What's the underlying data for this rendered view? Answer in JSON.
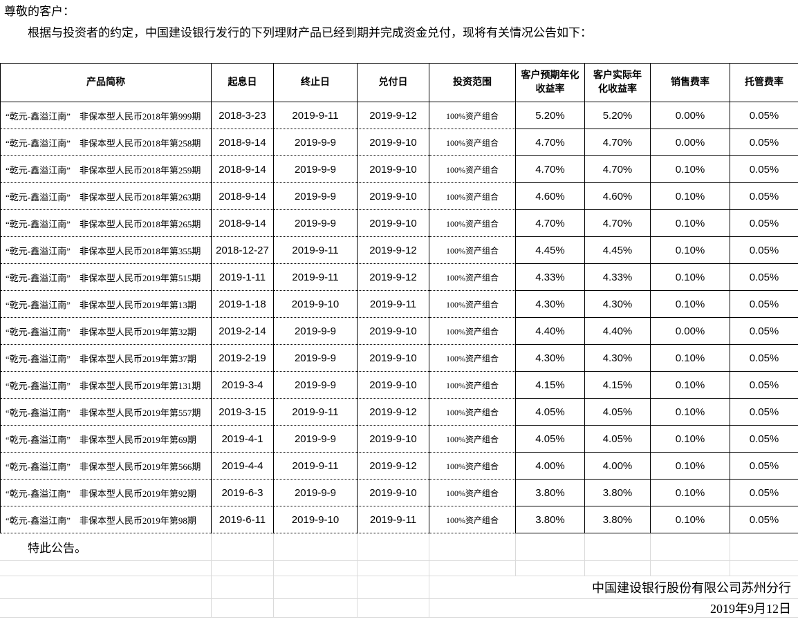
{
  "page": {
    "greeting": "尊敬的客户：",
    "intro": "根据与投资者的约定，中国建设银行发行的下列理财产品已经到期并完成资金兑付，现将有关情况公告如下：",
    "closing": "特此公告。",
    "signature": "中国建设银行股份有限公司苏州分行",
    "announce_date": "2019年9月12日"
  },
  "table": {
    "headers": [
      "产品简称",
      "起息日",
      "终止日",
      "兑付日",
      "投资范围",
      "客户预期年化收益率",
      "客户实际年化收益率",
      "销售费率",
      "托管费率"
    ],
    "rows": [
      {
        "name": "“乾元-鑫溢江南”　非保本型人民币2018年第999期",
        "start_date": "2018-3-23",
        "end_date": "2019-9-11",
        "payment_date": "2019-9-12",
        "scope": "100%资产组合",
        "expected_yield": "5.20%",
        "actual_yield": "5.20%",
        "sales_fee": "0.00%",
        "custody_fee": "0.05%"
      },
      {
        "name": "“乾元-鑫溢江南”　非保本型人民币2018年第258期",
        "start_date": "2018-9-14",
        "end_date": "2019-9-9",
        "payment_date": "2019-9-10",
        "scope": "100%资产组合",
        "expected_yield": "4.70%",
        "actual_yield": "4.70%",
        "sales_fee": "0.00%",
        "custody_fee": "0.05%"
      },
      {
        "name": "“乾元-鑫溢江南”　非保本型人民币2018年第259期",
        "start_date": "2018-9-14",
        "end_date": "2019-9-9",
        "payment_date": "2019-9-10",
        "scope": "100%资产组合",
        "expected_yield": "4.70%",
        "actual_yield": "4.70%",
        "sales_fee": "0.10%",
        "custody_fee": "0.05%"
      },
      {
        "name": "“乾元-鑫溢江南”　非保本型人民币2018年第263期",
        "start_date": "2018-9-14",
        "end_date": "2019-9-9",
        "payment_date": "2019-9-10",
        "scope": "100%资产组合",
        "expected_yield": "4.60%",
        "actual_yield": "4.60%",
        "sales_fee": "0.10%",
        "custody_fee": "0.05%"
      },
      {
        "name": "“乾元-鑫溢江南”　非保本型人民币2018年第265期",
        "start_date": "2018-9-14",
        "end_date": "2019-9-9",
        "payment_date": "2019-9-10",
        "scope": "100%资产组合",
        "expected_yield": "4.70%",
        "actual_yield": "4.70%",
        "sales_fee": "0.10%",
        "custody_fee": "0.05%"
      },
      {
        "name": "“乾元-鑫溢江南”　非保本型人民币2018年第355期",
        "start_date": "2018-12-27",
        "end_date": "2019-9-11",
        "payment_date": "2019-9-12",
        "scope": "100%资产组合",
        "expected_yield": "4.45%",
        "actual_yield": "4.45%",
        "sales_fee": "0.10%",
        "custody_fee": "0.05%"
      },
      {
        "name": "“乾元-鑫溢江南”　非保本型人民币2019年第515期",
        "start_date": "2019-1-11",
        "end_date": "2019-9-11",
        "payment_date": "2019-9-12",
        "scope": "100%资产组合",
        "expected_yield": "4.33%",
        "actual_yield": "4.33%",
        "sales_fee": "0.10%",
        "custody_fee": "0.05%"
      },
      {
        "name": "“乾元-鑫溢江南”　非保本型人民币2019年第13期",
        "start_date": "2019-1-18",
        "end_date": "2019-9-10",
        "payment_date": "2019-9-11",
        "scope": "100%资产组合",
        "expected_yield": "4.30%",
        "actual_yield": "4.30%",
        "sales_fee": "0.10%",
        "custody_fee": "0.05%"
      },
      {
        "name": "“乾元-鑫溢江南”　非保本型人民币2019年第32期",
        "start_date": "2019-2-14",
        "end_date": "2019-9-9",
        "payment_date": "2019-9-10",
        "scope": "100%资产组合",
        "expected_yield": "4.40%",
        "actual_yield": "4.40%",
        "sales_fee": "0.00%",
        "custody_fee": "0.05%"
      },
      {
        "name": "“乾元-鑫溢江南”　非保本型人民币2019年第37期",
        "start_date": "2019-2-19",
        "end_date": "2019-9-9",
        "payment_date": "2019-9-10",
        "scope": "100%资产组合",
        "expected_yield": "4.30%",
        "actual_yield": "4.30%",
        "sales_fee": "0.10%",
        "custody_fee": "0.05%"
      },
      {
        "name": "“乾元-鑫溢江南”　非保本型人民币2019年第131期",
        "start_date": "2019-3-4",
        "end_date": "2019-9-9",
        "payment_date": "2019-9-10",
        "scope": "100%资产组合",
        "expected_yield": "4.15%",
        "actual_yield": "4.15%",
        "sales_fee": "0.10%",
        "custody_fee": "0.05%"
      },
      {
        "name": "“乾元-鑫溢江南”　非保本型人民币2019年第557期",
        "start_date": "2019-3-15",
        "end_date": "2019-9-11",
        "payment_date": "2019-9-12",
        "scope": "100%资产组合",
        "expected_yield": "4.05%",
        "actual_yield": "4.05%",
        "sales_fee": "0.10%",
        "custody_fee": "0.05%"
      },
      {
        "name": "“乾元-鑫溢江南”　非保本型人民币2019年第69期",
        "start_date": "2019-4-1",
        "end_date": "2019-9-9",
        "payment_date": "2019-9-10",
        "scope": "100%资产组合",
        "expected_yield": "4.05%",
        "actual_yield": "4.05%",
        "sales_fee": "0.10%",
        "custody_fee": "0.05%"
      },
      {
        "name": "“乾元-鑫溢江南”　非保本型人民币2019年第566期",
        "start_date": "2019-4-4",
        "end_date": "2019-9-11",
        "payment_date": "2019-9-12",
        "scope": "100%资产组合",
        "expected_yield": "4.00%",
        "actual_yield": "4.00%",
        "sales_fee": "0.10%",
        "custody_fee": "0.05%"
      },
      {
        "name": "“乾元-鑫溢江南”　非保本型人民币2019年第92期",
        "start_date": "2019-6-3",
        "end_date": "2019-9-9",
        "payment_date": "2019-9-10",
        "scope": "100%资产组合",
        "expected_yield": "3.80%",
        "actual_yield": "3.80%",
        "sales_fee": "0.10%",
        "custody_fee": "0.05%"
      },
      {
        "name": "“乾元-鑫溢江南”　非保本型人民币2019年第98期",
        "start_date": "2019-6-11",
        "end_date": "2019-9-10",
        "payment_date": "2019-9-11",
        "scope": "100%资产组合",
        "expected_yield": "3.80%",
        "actual_yield": "3.80%",
        "sales_fee": "0.10%",
        "custody_fee": "0.05%"
      }
    ]
  }
}
